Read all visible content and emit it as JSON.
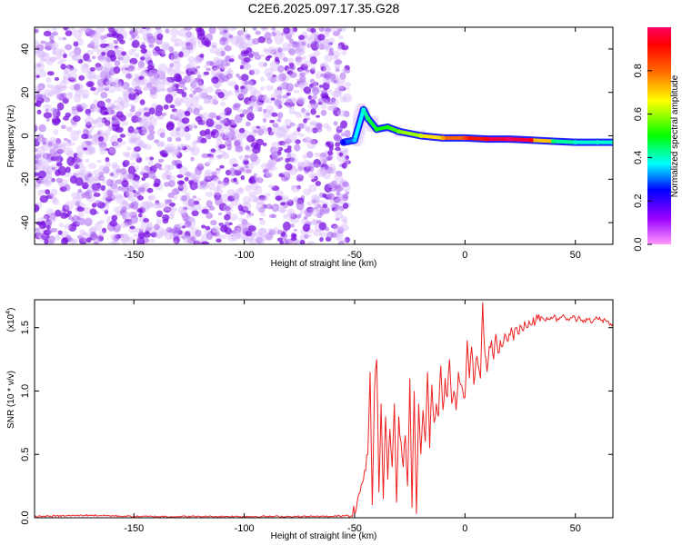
{
  "title": "C2E6.2025.097.17.35.G28",
  "chart_data": [
    {
      "type": "heatmap",
      "xlabel": "Height of straight line (km)",
      "ylabel": "Frequency (Hz)",
      "xlim": [
        -195,
        67
      ],
      "ylim": [
        -50,
        50
      ],
      "x_ticks": [
        -150,
        -100,
        -50,
        0,
        50
      ],
      "y_ticks": [
        -40,
        -20,
        0,
        20,
        40
      ],
      "colorbar": {
        "label": "Normalized spectral amplitude",
        "range": [
          0,
          1
        ],
        "ticks": [
          "0.0",
          "0.2",
          "0.4",
          "0.6",
          "0.8"
        ],
        "tick_values": [
          0,
          0.2,
          0.4,
          0.6,
          0.8
        ],
        "colors": [
          "#ff99ff",
          "#9900ff",
          "#0000ff",
          "#00ffff",
          "#00ff00",
          "#ffff00",
          "#ff6600",
          "#ff0000",
          "#ff0066"
        ]
      },
      "noise_region": {
        "x_range": [
          -195,
          -53
        ],
        "amplitude": "low (0.0-0.15)"
      },
      "signal_track": [
        {
          "x": -55,
          "y": -3,
          "amp": 0.25
        },
        {
          "x": -50,
          "y": -2,
          "amp": 0.35
        },
        {
          "x": -46,
          "y": 12,
          "amp": 0.4
        },
        {
          "x": -44,
          "y": 8,
          "amp": 0.45
        },
        {
          "x": -40,
          "y": 3,
          "amp": 0.5
        },
        {
          "x": -35,
          "y": 4,
          "amp": 0.5
        },
        {
          "x": -30,
          "y": 2,
          "amp": 0.55
        },
        {
          "x": -20,
          "y": 0,
          "amp": 0.6
        },
        {
          "x": -10,
          "y": -1,
          "amp": 0.7
        },
        {
          "x": 0,
          "y": -1,
          "amp": 0.8
        },
        {
          "x": 10,
          "y": -1.5,
          "amp": 0.9
        },
        {
          "x": 20,
          "y": -1.5,
          "amp": 1.0
        },
        {
          "x": 30,
          "y": -2,
          "amp": 0.9
        },
        {
          "x": 40,
          "y": -2.5,
          "amp": 0.45
        },
        {
          "x": 50,
          "y": -3,
          "amp": 0.4
        },
        {
          "x": 60,
          "y": -3,
          "amp": 0.4
        },
        {
          "x": 67,
          "y": -3,
          "amp": 0.4
        }
      ]
    },
    {
      "type": "line",
      "xlabel": "Height of straight line (km)",
      "ylabel": "SNR (10 * v/v)",
      "y_multiplier": "(x10",
      "y_multiplier_exp": "4",
      "y_multiplier_close": ")",
      "xlim": [
        -195,
        67
      ],
      "ylim": [
        0,
        1.72
      ],
      "x_ticks": [
        -150,
        -100,
        -50,
        0,
        50
      ],
      "y_ticks": [
        "0.0",
        "0.5",
        "1.0",
        "1.5"
      ],
      "y_tick_values": [
        0,
        0.5,
        1.0,
        1.5
      ],
      "line_color": "#ee2222",
      "series": [
        {
          "x": [
            -195,
            -170,
            -150,
            -120,
            -100,
            -80,
            -60,
            -53,
            -49,
            -46,
            -44,
            -43,
            -42,
            -41,
            -40,
            -39,
            -38,
            -37,
            -36,
            -35,
            -34,
            -33,
            -32,
            -31,
            -30,
            -29,
            -28,
            -27,
            -26,
            -25,
            -24,
            -23,
            -22,
            -21,
            -20,
            -19,
            -18,
            -17,
            -16,
            -15,
            -14,
            -13,
            -12,
            -11,
            -10,
            -9,
            -8,
            -7,
            -6,
            -5,
            -4,
            -3,
            -2,
            -1,
            0,
            1,
            2,
            3,
            4,
            5,
            6,
            7,
            8,
            9,
            10,
            11,
            12,
            13,
            14,
            15,
            16,
            17,
            18,
            19,
            20,
            21,
            22,
            23,
            24,
            25,
            26,
            27,
            28,
            29,
            30,
            31,
            32,
            33,
            34,
            35,
            36,
            37,
            38,
            40,
            42,
            44,
            46,
            48,
            50,
            52,
            54,
            56,
            58,
            60,
            62,
            64,
            66,
            67
          ],
          "values": [
            0.01,
            0.02,
            0.01,
            0.01,
            0.01,
            0.01,
            0.01,
            0.02,
            0.1,
            0.3,
            0.5,
            1.15,
            0.1,
            1.0,
            1.25,
            0.2,
            0.9,
            0.15,
            0.8,
            0.3,
            0.7,
            0.4,
            0.9,
            0.12,
            0.8,
            0.6,
            0.4,
            0.65,
            0.25,
            1.1,
            0.08,
            1.0,
            0.03,
            0.9,
            0.5,
            0.85,
            0.6,
            1.15,
            0.55,
            1.05,
            0.75,
            0.9,
            0.8,
            1.2,
            0.85,
            1.1,
            0.95,
            1.25,
            0.9,
            1.0,
            0.85,
            1.15,
            1.05,
            1.0,
            0.95,
            1.4,
            1.1,
            1.35,
            1.05,
            1.25,
            1.2,
            1.1,
            1.7,
            1.3,
            1.15,
            1.35,
            1.4,
            1.25,
            1.45,
            1.3,
            1.4,
            1.35,
            1.45,
            1.4,
            1.45,
            1.5,
            1.4,
            1.5,
            1.45,
            1.52,
            1.48,
            1.55,
            1.5,
            1.55,
            1.52,
            1.58,
            1.55,
            1.57,
            1.55,
            1.58,
            1.56,
            1.58,
            1.57,
            1.58,
            1.57,
            1.59,
            1.56,
            1.58,
            1.57,
            1.58,
            1.56,
            1.57,
            1.55,
            1.57,
            1.56,
            1.55,
            1.53,
            1.53
          ]
        }
      ]
    }
  ]
}
